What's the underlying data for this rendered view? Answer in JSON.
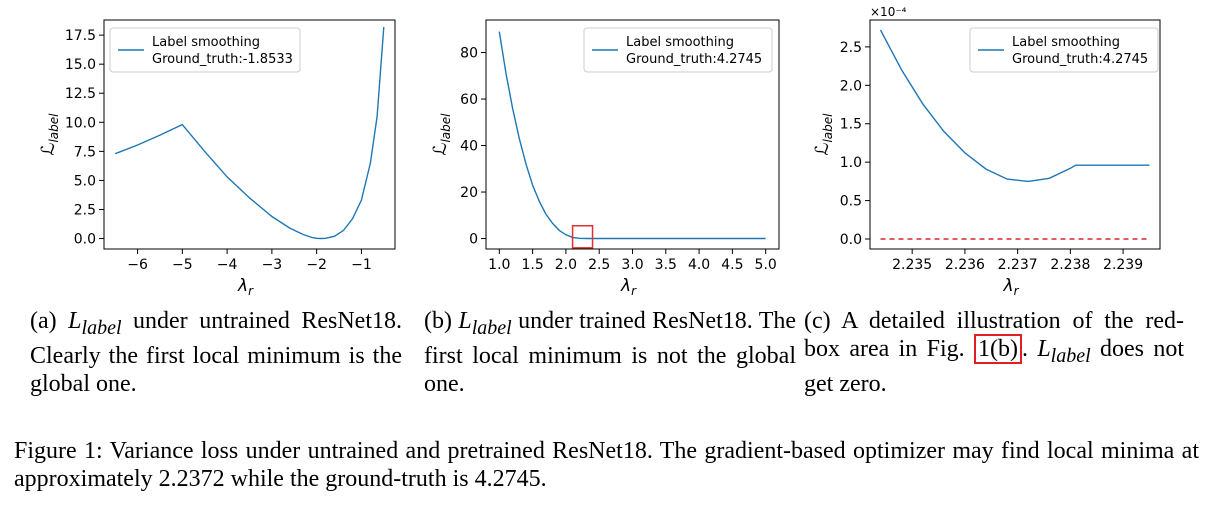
{
  "chart_data": [
    {
      "type": "line",
      "ylabel": "L_label",
      "xlabel": "λ_r",
      "xlim": [
        -6.75,
        -0.25
      ],
      "ylim": [
        -0.9,
        18.8
      ],
      "xticks": [
        -6,
        -5,
        -4,
        -3,
        -2,
        -1
      ],
      "yticks": [
        0.0,
        2.5,
        5.0,
        7.5,
        10.0,
        12.5,
        15.0,
        17.5
      ],
      "xtick_labels": [
        "−6",
        "−5",
        "−4",
        "−3",
        "−2",
        "−1"
      ],
      "ytick_labels": [
        "0.0",
        "2.5",
        "5.0",
        "7.5",
        "10.0",
        "12.5",
        "15.0",
        "17.5"
      ],
      "series": [
        {
          "name": "Label smoothing Ground_truth:-1.8533",
          "color": "#1f77b4",
          "x": [
            -6.5,
            -6.0,
            -5.5,
            -5.0,
            -4.5,
            -4.0,
            -3.5,
            -3.0,
            -2.6,
            -2.3,
            -2.1,
            -2.0,
            -1.9,
            -1.8,
            -1.6,
            -1.4,
            -1.2,
            -1.0,
            -0.8,
            -0.65,
            -0.5
          ],
          "y": [
            7.3,
            8.05,
            8.9,
            9.8,
            7.5,
            5.3,
            3.5,
            1.9,
            0.9,
            0.35,
            0.08,
            0.02,
            0.0,
            0.02,
            0.2,
            0.7,
            1.7,
            3.3,
            6.5,
            10.5,
            18.2
          ]
        }
      ],
      "legend": {
        "position": "top-left",
        "lines": [
          "Label smoothing",
          "Ground_truth:-1.8533"
        ]
      }
    },
    {
      "type": "line",
      "ylabel": "L_label",
      "xlabel": "λ_r",
      "xlim": [
        0.8,
        5.2
      ],
      "ylim": [
        -4.5,
        94
      ],
      "xticks": [
        1.0,
        1.5,
        2.0,
        2.5,
        3.0,
        3.5,
        4.0,
        4.5,
        5.0
      ],
      "yticks": [
        0,
        20,
        40,
        60,
        80
      ],
      "xtick_labels": [
        "1.0",
        "1.5",
        "2.0",
        "2.5",
        "3.0",
        "3.5",
        "4.0",
        "4.5",
        "5.0"
      ],
      "ytick_labels": [
        "0",
        "20",
        "40",
        "60",
        "80"
      ],
      "series": [
        {
          "name": "Label smoothing Ground_truth:4.2745",
          "color": "#1f77b4",
          "x": [
            1.0,
            1.1,
            1.2,
            1.3,
            1.4,
            1.5,
            1.6,
            1.7,
            1.8,
            1.9,
            2.0,
            2.1,
            2.2,
            2.3,
            2.5,
            3.0,
            4.0,
            5.0
          ],
          "y": [
            89,
            71,
            56,
            43,
            32,
            23,
            16,
            10.5,
            6.5,
            3.5,
            1.6,
            0.5,
            0.1,
            0.0,
            0.0,
            0.0,
            0.0,
            0.0
          ]
        }
      ],
      "highlight_box": {
        "x": [
          2.1,
          2.4
        ],
        "y": [
          -4,
          5.5
        ],
        "color": "#e03030"
      },
      "legend": {
        "position": "top-right",
        "lines": [
          "Label smoothing",
          "Ground_truth:4.2745"
        ]
      }
    },
    {
      "type": "line",
      "ylabel": "L_label",
      "xlabel": "λ_r",
      "scale_label": "×10⁻⁴",
      "xlim": [
        2.2342,
        2.2397
      ],
      "ylim": [
        -0.13,
        2.85
      ],
      "xticks": [
        2.235,
        2.236,
        2.237,
        2.238,
        2.239
      ],
      "yticks": [
        0.0,
        0.5,
        1.0,
        1.5,
        2.0,
        2.5
      ],
      "xtick_labels": [
        "2.235",
        "2.236",
        "2.237",
        "2.238",
        "2.239"
      ],
      "ytick_labels": [
        "0.0",
        "0.5",
        "1.0",
        "1.5",
        "2.0",
        "2.5"
      ],
      "series": [
        {
          "name": "Label smoothing Ground_truth:4.2745",
          "color": "#1f77b4",
          "x": [
            2.2344,
            2.2348,
            2.2352,
            2.2356,
            2.236,
            2.2364,
            2.2368,
            2.2372,
            2.2376,
            2.238,
            2.2381,
            2.2385,
            2.239,
            2.2395
          ],
          "y": [
            2.72,
            2.2,
            1.76,
            1.4,
            1.12,
            0.91,
            0.78,
            0.75,
            0.79,
            0.92,
            0.96,
            0.96,
            0.96,
            0.96
          ]
        },
        {
          "name": "zero",
          "color": "#d62728",
          "dashed": true,
          "x": [
            2.2344,
            2.2395
          ],
          "y": [
            0.0,
            0.0
          ]
        }
      ],
      "legend": {
        "position": "top-right",
        "lines": [
          "Label smoothing",
          "Ground_truth:4.2745"
        ]
      }
    }
  ],
  "captions": {
    "a": {
      "tag": "(a)",
      "var": "L",
      "sub": "label",
      "text": "under untrained ResNet18. Clearly the first local minimum is the global one."
    },
    "b": {
      "tag": "(b)",
      "var": "L",
      "sub": "label",
      "text": "under trained ResNet18. The first local minimum is not the global one."
    },
    "c": {
      "tag": "(c)",
      "pre": "A detailed illustration of the red-box area in Fig.",
      "ref": "1(b)",
      "post": ".",
      "var": "L",
      "sub": "label",
      "end": "does not get zero."
    }
  },
  "figure_caption": "Figure 1: Variance loss under untrained and pretrained ResNet18. The gradient-based optimizer may find local minima at approximately 2.2372 while the ground-truth is 4.2745."
}
